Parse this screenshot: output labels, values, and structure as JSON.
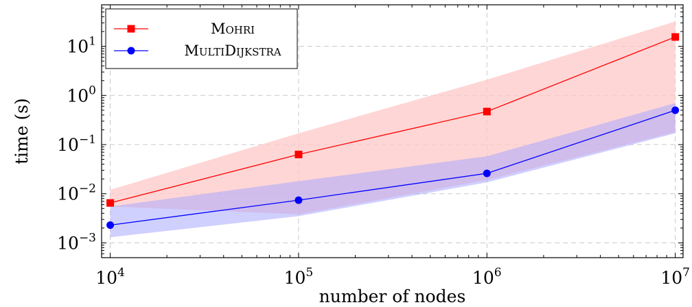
{
  "chart_data": {
    "type": "line",
    "xlabel": "number of nodes",
    "ylabel": "time (s)",
    "xscale": "log",
    "yscale": "log",
    "xlim": [
      9000,
      11000000
    ],
    "ylim": [
      0.0005,
      70
    ],
    "x_ticks": [
      {
        "base": "10",
        "exp": "4",
        "value": 10000
      },
      {
        "base": "10",
        "exp": "5",
        "value": 100000
      },
      {
        "base": "10",
        "exp": "6",
        "value": 1000000
      },
      {
        "base": "10",
        "exp": "7",
        "value": 10000000
      }
    ],
    "y_ticks": [
      {
        "base": "10",
        "exp": "−3",
        "value": 0.001
      },
      {
        "base": "10",
        "exp": "−2",
        "value": 0.01
      },
      {
        "base": "10",
        "exp": "−1",
        "value": 0.1
      },
      {
        "base": "10",
        "exp": "0",
        "value": 1
      },
      {
        "base": "10",
        "exp": "1",
        "value": 10
      }
    ],
    "grid": true,
    "legend_position": "top-left",
    "x": [
      10000,
      100000,
      1000000,
      10000000
    ],
    "series": [
      {
        "name": "Mohri",
        "values": [
          0.0065,
          0.063,
          0.47,
          15.5
        ],
        "band_low": [
          0.0055,
          0.0038,
          0.019,
          0.18
        ],
        "band_high": [
          0.012,
          0.17,
          2.1,
          32
        ],
        "color": "#ff0000",
        "band_color": "#ffc8c8",
        "marker": "square"
      },
      {
        "name": "MultiDijkstra",
        "values": [
          0.0023,
          0.0074,
          0.026,
          0.5
        ],
        "band_low": [
          0.0013,
          0.0035,
          0.017,
          0.17
        ],
        "band_high": [
          0.0055,
          0.018,
          0.058,
          0.7
        ],
        "color": "#0000ff",
        "band_color": "#aaaaff",
        "marker": "circle"
      }
    ]
  }
}
